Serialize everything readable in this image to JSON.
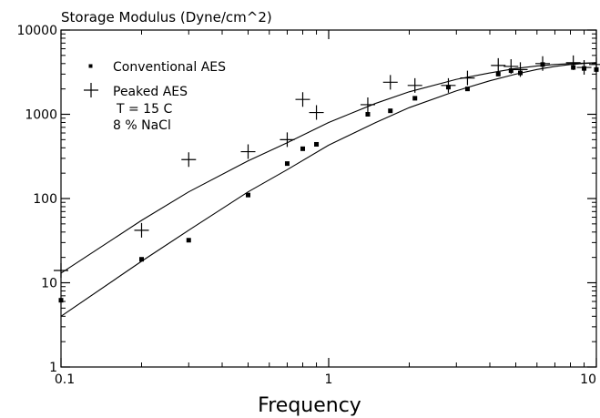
{
  "chart_data": {
    "type": "scatter",
    "title": "Storage Modulus (Dyne/cm^2)",
    "xlabel": "Frequency",
    "ylabel": "",
    "x_scale": "log",
    "y_scale": "log",
    "xlim": [
      0.1,
      10
    ],
    "ylim": [
      1,
      10000
    ],
    "grid": false,
    "legend_placement": "top-left",
    "x_ticks": [
      {
        "value": 0.1,
        "label": "0.1"
      },
      {
        "value": 1,
        "label": "1"
      },
      {
        "value": 10,
        "label": "10"
      }
    ],
    "y_ticks": [
      {
        "value": 1,
        "label": "1"
      },
      {
        "value": 10,
        "label": "10"
      },
      {
        "value": 100,
        "label": "100"
      },
      {
        "value": 1000,
        "label": "1000"
      },
      {
        "value": 10000,
        "label": "10000"
      }
    ],
    "annotations": [
      "T = 15 C",
      "8 % NaCl"
    ],
    "series": [
      {
        "name": "Conventional AES",
        "marker": "square",
        "points": [
          [
            0.1,
            6.2
          ],
          [
            0.2,
            19
          ],
          [
            0.3,
            32
          ],
          [
            0.5,
            110
          ],
          [
            0.7,
            260
          ],
          [
            0.8,
            390
          ],
          [
            0.9,
            440
          ],
          [
            1.4,
            1000
          ],
          [
            1.7,
            1100
          ],
          [
            2.1,
            1550
          ],
          [
            2.8,
            2100
          ],
          [
            3.3,
            2000
          ],
          [
            4.3,
            3000
          ],
          [
            4.8,
            3300
          ],
          [
            5.2,
            3100
          ],
          [
            6.3,
            3900
          ],
          [
            8.2,
            3600
          ],
          [
            9,
            3500
          ],
          [
            10,
            3400
          ]
        ],
        "fit": [
          [
            0.1,
            4
          ],
          [
            0.2,
            18
          ],
          [
            0.3,
            42
          ],
          [
            0.5,
            120
          ],
          [
            0.7,
            220
          ],
          [
            1,
            430
          ],
          [
            1.5,
            800
          ],
          [
            2,
            1200
          ],
          [
            3,
            1900
          ],
          [
            4,
            2500
          ],
          [
            5,
            3000
          ],
          [
            6,
            3400
          ],
          [
            7,
            3700
          ],
          [
            8,
            3900
          ],
          [
            10,
            4100
          ]
        ]
      },
      {
        "name": "Peaked AES",
        "marker": "plus",
        "points": [
          [
            0.1,
            14
          ],
          [
            0.2,
            42
          ],
          [
            0.3,
            290
          ],
          [
            0.5,
            360
          ],
          [
            0.7,
            500
          ],
          [
            0.8,
            1500
          ],
          [
            0.9,
            1050
          ],
          [
            1.4,
            1300
          ],
          [
            1.7,
            2400
          ],
          [
            2.1,
            2200
          ],
          [
            2.8,
            2200
          ],
          [
            3.3,
            2700
          ],
          [
            4.3,
            3800
          ],
          [
            4.8,
            3700
          ],
          [
            5.2,
            3400
          ],
          [
            6.3,
            4000
          ],
          [
            8.2,
            4100
          ],
          [
            9,
            3600
          ],
          [
            10,
            3900
          ]
        ],
        "fit": [
          [
            0.1,
            13
          ],
          [
            0.2,
            55
          ],
          [
            0.3,
            120
          ],
          [
            0.5,
            280
          ],
          [
            0.7,
            460
          ],
          [
            1,
            800
          ],
          [
            1.5,
            1350
          ],
          [
            2,
            1850
          ],
          [
            3,
            2600
          ],
          [
            4,
            3100
          ],
          [
            5,
            3500
          ],
          [
            6,
            3750
          ],
          [
            7,
            3900
          ],
          [
            8,
            4000
          ],
          [
            10,
            4100
          ]
        ]
      }
    ]
  }
}
